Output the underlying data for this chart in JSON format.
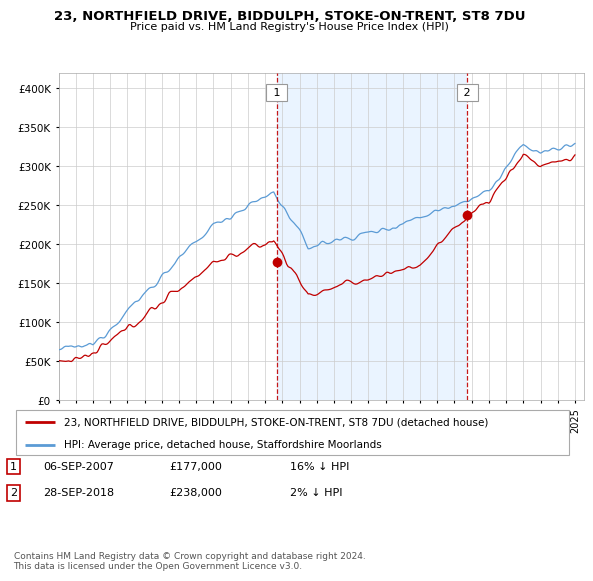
{
  "title": "23, NORTHFIELD DRIVE, BIDDULPH, STOKE-ON-TRENT, ST8 7DU",
  "subtitle": "Price paid vs. HM Land Registry's House Price Index (HPI)",
  "legend_line1": "23, NORTHFIELD DRIVE, BIDDULPH, STOKE-ON-TRENT, ST8 7DU (detached house)",
  "legend_line2": "HPI: Average price, detached house, Staffordshire Moorlands",
  "transaction1_date": "06-SEP-2007",
  "transaction1_price": "£177,000",
  "transaction1_hpi": "16% ↓ HPI",
  "transaction2_date": "28-SEP-2018",
  "transaction2_price": "£238,000",
  "transaction2_hpi": "2% ↓ HPI",
  "footnote": "Contains HM Land Registry data © Crown copyright and database right 2024.\nThis data is licensed under the Open Government Licence v3.0.",
  "hpi_color": "#5b9bd5",
  "price_color": "#c00000",
  "dashed_color": "#c00000",
  "shade_color": "#ddeeff",
  "ylim": [
    0,
    420000
  ],
  "yticks": [
    0,
    50000,
    100000,
    150000,
    200000,
    250000,
    300000,
    350000,
    400000
  ],
  "start_year": 1995,
  "end_year": 2025,
  "t1_year_val": 2007.667,
  "t1_price": 177000,
  "t2_year_val": 2018.75,
  "t2_price": 238000
}
